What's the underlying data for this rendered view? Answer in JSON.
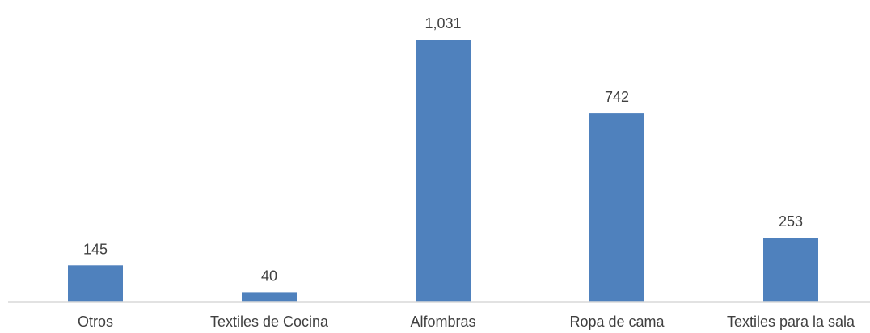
{
  "chart_data": {
    "type": "bar",
    "title": "",
    "xlabel": "",
    "ylabel": "",
    "categories": [
      "Otros",
      "Textiles de Cocina",
      "Alfombras",
      "Ropa de cama",
      "Textiles para la sala"
    ],
    "values": [
      145,
      40,
      1031,
      742,
      253
    ],
    "value_labels": [
      "145",
      "40",
      "1,031",
      "742",
      "253"
    ],
    "ylim": [
      0,
      1100
    ],
    "grid": false,
    "legend": "none",
    "colors": {
      "bar": "#4f81bd",
      "axis": "#d9d9d9",
      "text": "#404040"
    }
  }
}
